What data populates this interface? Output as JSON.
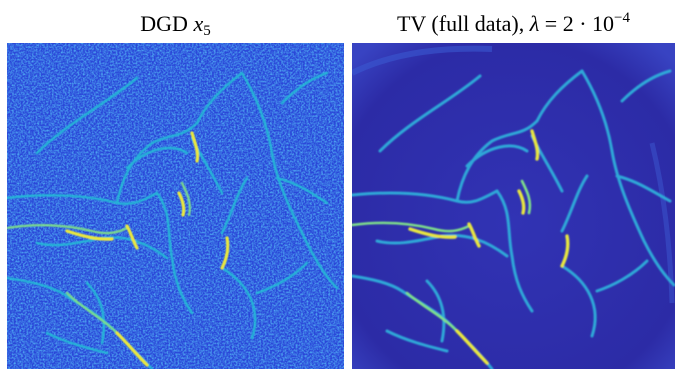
{
  "panels": [
    {
      "caption_prefix": "DGD",
      "caption_var": "x",
      "caption_sub": "5"
    },
    {
      "caption_prefix": "TV (full data),",
      "caption_var": "λ",
      "caption_eq": "= 2 · 10",
      "caption_sup": "−4"
    }
  ],
  "colors": {
    "noisy_background": "#2a47d8",
    "clean_background": "#2c2ba6",
    "vessel_mid": "#22b8d6",
    "vessel_high": "#e8e640"
  }
}
